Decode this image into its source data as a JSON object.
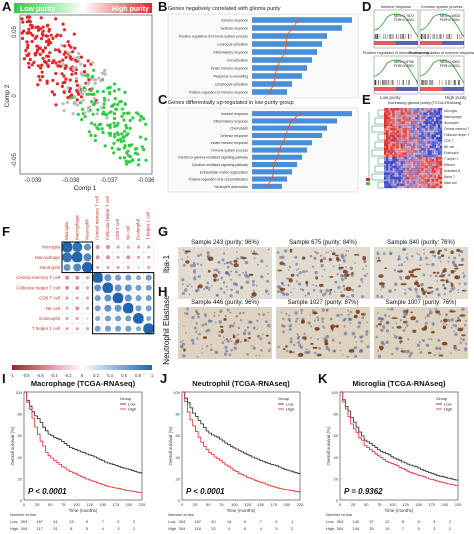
{
  "figure": {
    "panel_letters": [
      "A",
      "B",
      "C",
      "D",
      "E",
      "F",
      "G",
      "H",
      "I",
      "J",
      "K"
    ],
    "stain_labels": [
      "Iba-1",
      "Neutrophil Elastase"
    ]
  },
  "panel_a": {
    "legend": {
      "low": "Low purity",
      "high": "High purity"
    },
    "xlabel": "Comp 1",
    "ylabel": "Comp 2",
    "xticks": [
      "-0.039",
      "-0.038",
      "-0.037",
      "-0.036"
    ],
    "yticks": [
      "0.05",
      "0",
      "-0.05"
    ]
  },
  "panel_b": {
    "title": "Genes negatively correlated with glioma purity",
    "terms": [
      "Immune response",
      "Defense response",
      "Positive regulation of immune system process",
      "Leukocyte activation",
      "Inflammatory response",
      "Cell activation",
      "Innate immune response",
      "Response to wounding",
      "Lymphocyte activation",
      "Positive regulation of immune response"
    ],
    "values": [
      20,
      18,
      15,
      14,
      13,
      12,
      11,
      10,
      8,
      7
    ]
  },
  "panel_c": {
    "title": "Genes differentially up-regulated in low purity group",
    "terms": [
      "Immune response",
      "Inflammatory response",
      "Chemotaxis",
      "Defense response",
      "Innate immune response",
      "Immune system process",
      "Interferon-gamma-mediated signaling pathway",
      "Cytokine-mediated signaling pathway",
      "Extracellular matrix organization",
      "Positive regulation of B cell proliferation",
      "Neutrophil chemotaxis"
    ],
    "values": [
      20,
      17,
      15,
      14,
      12,
      11,
      10,
      9,
      8,
      7,
      6
    ]
  },
  "panel_d": {
    "plots": [
      {
        "title": "Immune response",
        "nes": "NES=1.7872",
        "fdr": "FDR<0.0001"
      },
      {
        "title": "Immune system process",
        "nes": "NES=1.6933",
        "fdr": "FDR<0.0001"
      },
      {
        "title": "Positive regulation of immune response",
        "nes": "NES=1.8796",
        "fdr": "FDR<0.0001"
      },
      {
        "title": "Positive regulation of immune response",
        "nes": "NES=1.8531",
        "fdr": "FDR<0.0001"
      }
    ],
    "xlow": "Low purity",
    "xhigh": "High purity"
  },
  "panel_e": {
    "title": "Increasing glioma purity (TCGA-RNAseq)",
    "row_labels": [
      "Microglia",
      "Macrophage",
      "Neutrophil",
      "Central memory T",
      "Follicular helper T",
      "CD8 T",
      "NK cell",
      "Eosinophil",
      "T helper 1",
      "Effector",
      "Activated B",
      "Naive T",
      "Mast cell"
    ]
  },
  "panel_f": {
    "cells": [
      "Microglia",
      "Macrophage",
      "Neutrophil",
      "Central memory T cell",
      "Follicular helper T cell",
      "CD8 T cell",
      "NK cell",
      "Eosinophil",
      "T helper 1 cell"
    ],
    "scale": [
      "-1",
      "-0.8",
      "-0.6",
      "-0.4",
      "-0.2",
      "0",
      "0.2",
      "0.4",
      "0.6",
      "0.8",
      "1"
    ],
    "matrix": [
      [
        1,
        0.9,
        0.6,
        -0.3,
        -0.3,
        -0.2,
        -0.2,
        -0.2,
        -0.2
      ],
      [
        0.9,
        1,
        0.7,
        -0.3,
        -0.3,
        -0.2,
        -0.3,
        -0.2,
        -0.2
      ],
      [
        0.6,
        0.7,
        1,
        -0.2,
        -0.2,
        -0.2,
        -0.2,
        -0.1,
        -0.2
      ],
      [
        -0.3,
        -0.3,
        -0.2,
        1,
        0.6,
        0.5,
        0.5,
        0.4,
        0.5
      ],
      [
        -0.3,
        -0.3,
        -0.2,
        0.6,
        1,
        0.6,
        0.6,
        0.5,
        0.5
      ],
      [
        -0.2,
        -0.2,
        -0.2,
        0.5,
        0.6,
        1,
        0.6,
        0.5,
        0.5
      ],
      [
        -0.2,
        -0.3,
        -0.2,
        0.5,
        0.6,
        0.6,
        1,
        0.5,
        0.5
      ],
      [
        -0.2,
        -0.2,
        -0.1,
        0.4,
        0.5,
        0.5,
        0.5,
        1,
        0.4
      ],
      [
        -0.2,
        -0.2,
        -0.2,
        0.5,
        0.5,
        0.5,
        0.5,
        0.4,
        1
      ]
    ]
  },
  "panel_g": {
    "samples": [
      "Sample 243 (purity: 96%)",
      "Sample 675 (purity: 84%)",
      "Sample 840 (purity: 76%)"
    ]
  },
  "panel_h": {
    "samples": [
      "Sample 446 (purity: 96%)",
      "Sample 1027 (purity: 87%)",
      "Sample 1007 (purity: 76%)"
    ]
  },
  "km": [
    {
      "title": "Macrophage (TCGA-RNAseq)",
      "pvalue": "P < 0.0001",
      "legend_title": "Group",
      "legend": [
        "Low",
        "High"
      ],
      "ylabel": "Overall survival (%)",
      "xlabel": "Time (months)",
      "risk_title": "Number at risk",
      "risk_labels": [
        "Low",
        "High"
      ],
      "risk_low": [
        "304",
        "167",
        "41",
        "13",
        "9",
        "7",
        "5",
        "2"
      ],
      "risk_high": [
        "304",
        "117",
        "31",
        "8",
        "5",
        "4",
        "3",
        "2"
      ]
    },
    {
      "title": "Neutrophil (TCGA-RNAseq)",
      "pvalue": "P < 0.0001",
      "legend_title": "Group",
      "legend": [
        "Low",
        "High"
      ],
      "ylabel": "Overall survival (%)",
      "xlabel": "Time (months)",
      "risk_title": "Number at risk",
      "risk_labels": [
        "Low",
        "High"
      ],
      "risk_low": [
        "304",
        "167",
        "40",
        "14",
        "9",
        "7",
        "5",
        "1"
      ],
      "risk_high": [
        "304",
        "118",
        "32",
        "9",
        "6",
        "4",
        "3",
        "2"
      ]
    },
    {
      "title": "Microglia (TCGA-RNAseq)",
      "pvalue": "P = 0.9362",
      "legend_title": "Group",
      "legend": [
        "Low",
        "High"
      ],
      "ylabel": "Overall survival (%)",
      "xlabel": "Time (months)",
      "risk_title": "Number at risk",
      "risk_labels": [
        "Low",
        "High"
      ],
      "risk_low": [
        "304",
        "140",
        "37",
        "12",
        "8",
        "6",
        "4",
        "2"
      ],
      "risk_high": [
        "304",
        "144",
        "35",
        "10",
        "7",
        "5",
        "3",
        "2"
      ]
    }
  ],
  "km_xticks": [
    "0",
    "25",
    "50",
    "75",
    "100",
    "125",
    "150",
    "175",
    "200",
    "225"
  ],
  "km_yticks": [
    "100",
    "80",
    "60",
    "40",
    "20",
    "0"
  ],
  "colors": {
    "low": "#2ecc40",
    "high": "#e3262a",
    "bar": "#4a8fd6",
    "accent": "#e5541e",
    "cyan": "#2fb7c9"
  }
}
